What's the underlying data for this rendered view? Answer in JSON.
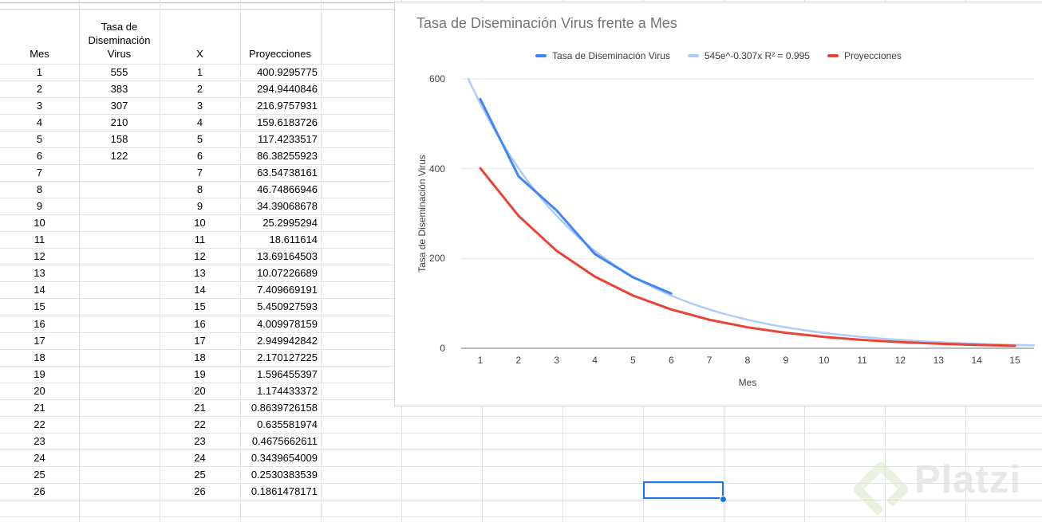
{
  "app": "spreadsheet",
  "table": {
    "headers": [
      "Mes",
      "Tasa de\nDiseminación\nVirus",
      "X",
      "Proyecciones"
    ],
    "mes": [
      "1",
      "2",
      "3",
      "4",
      "5",
      "6",
      "7",
      "8",
      "9",
      "10",
      "11",
      "12",
      "13",
      "14",
      "15",
      "16",
      "17",
      "18",
      "19",
      "20",
      "21",
      "22",
      "23",
      "24",
      "25",
      "26"
    ],
    "tasa": [
      "555",
      "383",
      "307",
      "210",
      "158",
      "122",
      "",
      "",
      "",
      "",
      "",
      "",
      "",
      "",
      "",
      "",
      "",
      "",
      "",
      "",
      "",
      "",
      "",
      "",
      "",
      ""
    ],
    "x": [
      "1",
      "2",
      "3",
      "4",
      "5",
      "6",
      "7",
      "8",
      "9",
      "10",
      "11",
      "12",
      "13",
      "14",
      "15",
      "16",
      "17",
      "18",
      "19",
      "20",
      "21",
      "22",
      "23",
      "24",
      "25",
      "26"
    ],
    "proyecciones": [
      "400.9295775",
      "294.9440846",
      "216.9757931",
      "159.6183726",
      "117.4233517",
      "86.38255923",
      "63.54738161",
      "46.74866946",
      "34.39068678",
      "25.2995294",
      "18.611614",
      "13.69164503",
      "10.07226689",
      "7.409669191",
      "5.450927593",
      "4.009978159",
      "2.949942842",
      "2.170127225",
      "1.596455397",
      "1.174433372",
      "0.8639726158",
      "0.635581974",
      "0.4675662611",
      "0.3439654009",
      "0.2530383539",
      "0.1861478171"
    ]
  },
  "selection": {
    "value": "",
    "border_color": "#1a73e8"
  },
  "chart_data": {
    "type": "line",
    "title": "Tasa de Diseminación Virus frente a Mes",
    "xlabel": "Mes",
    "ylabel": "Tasa de Diseminación Virus",
    "x_ticks": [
      1,
      2,
      3,
      4,
      5,
      6,
      7,
      8,
      9,
      10,
      11,
      12,
      13,
      14,
      15
    ],
    "y_ticks": [
      0,
      200,
      400,
      600
    ],
    "ylim": [
      0,
      600
    ],
    "xlim": [
      0.5,
      15.5
    ],
    "grid": true,
    "legend_position": "top",
    "title_color": "#757575",
    "gridline_color": "#e6e6e6",
    "axis_line_color": "#747474",
    "series": [
      {
        "name": "Tasa de Diseminación Virus",
        "color": "#4285f4",
        "width": 3,
        "x": [
          1,
          2,
          3,
          4,
          5,
          6
        ],
        "values": [
          555,
          383,
          307,
          210,
          158,
          122
        ]
      },
      {
        "name": "545e^-0.307x R² = 0.995",
        "color": "#aecbfa",
        "width": 2.5,
        "trendline": {
          "coefficient": 545,
          "rate": -0.307,
          "x_offset": 1,
          "x_end": 15.5,
          "clip_max": 600
        }
      },
      {
        "name": "Proyecciones",
        "color": "#ea4335",
        "width": 3,
        "x": [
          1,
          2,
          3,
          4,
          5,
          6,
          7,
          8,
          9,
          10,
          11,
          12,
          13,
          14,
          15
        ],
        "values": [
          400.9295775,
          294.9440846,
          216.9757931,
          159.6183726,
          117.4233517,
          86.38255923,
          63.54738161,
          46.74866946,
          34.39068678,
          25.2995294,
          18.611614,
          13.69164503,
          10.07226689,
          7.409669191,
          5.450927593
        ]
      }
    ]
  },
  "watermark": {
    "text": "Platzi",
    "logo_color": "#e9f2de",
    "text_color": "#e8e8e6"
  }
}
